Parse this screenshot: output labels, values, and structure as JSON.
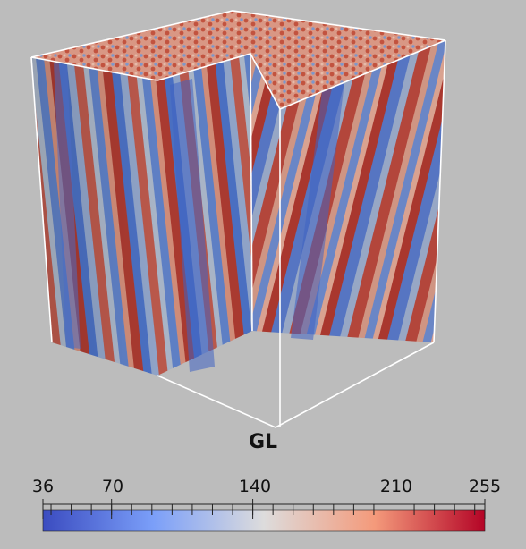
{
  "volume": {
    "variable": "GL",
    "colormap": {
      "low_color": "#3b4cc0",
      "mid_color": "#dddddd",
      "high_color": "#b40426"
    }
  },
  "colorbar": {
    "min": 36,
    "max": 255,
    "tick_labels": [
      "36",
      "70",
      "140",
      "210",
      "255"
    ],
    "tick_values": [
      36,
      70,
      140,
      210,
      255
    ]
  }
}
